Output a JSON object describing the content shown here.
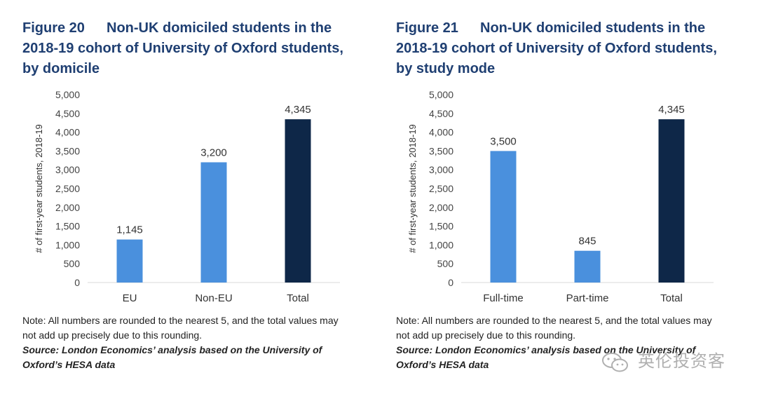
{
  "chart_data": [
    {
      "type": "bar",
      "figure_number": "Figure 20",
      "title": "Non-UK domiciled students in the 2018-19 cohort of University of Oxford students, by domicile",
      "ylabel": "# of first-year students, 2018-19",
      "xlabel": "",
      "ylim": [
        0,
        5000
      ],
      "yticks": [
        "0",
        "500",
        "1,000",
        "1,500",
        "2,000",
        "2,500",
        "3,000",
        "3,500",
        "4,000",
        "4,500",
        "5,000"
      ],
      "categories": [
        "EU",
        "Non-EU",
        "Total"
      ],
      "values": [
        1145,
        3200,
        4345
      ],
      "data_labels": [
        "1,145",
        "3,200",
        "4,345"
      ],
      "bar_colors": [
        "#4a90dd",
        "#4a90dd",
        "#0e2748"
      ],
      "note": "Note: All numbers are rounded to the nearest 5, and the total values may not add up precisely due to this rounding.",
      "source": "Source: London Economics’ analysis based on the University of Oxford’s HESA data"
    },
    {
      "type": "bar",
      "figure_number": "Figure 21",
      "title": "Non-UK domiciled students in the 2018-19 cohort of University of Oxford students, by study mode",
      "ylabel": "# of first-year students, 2018-19",
      "xlabel": "",
      "ylim": [
        0,
        5000
      ],
      "yticks": [
        "0",
        "500",
        "1,000",
        "1,500",
        "2,000",
        "2,500",
        "3,000",
        "3,500",
        "4,000",
        "4,500",
        "5,000"
      ],
      "categories": [
        "Full-time",
        "Part-time",
        "Total"
      ],
      "values": [
        3500,
        845,
        4345
      ],
      "data_labels": [
        "3,500",
        "845",
        "4,345"
      ],
      "bar_colors": [
        "#4a90dd",
        "#4a90dd",
        "#0e2748"
      ],
      "note": "Note: All numbers are rounded to the nearest 5, and the total values may not add up precisely due to this rounding.",
      "source": "Source: London Economics’ analysis based on the University of Oxford’s HESA data"
    }
  ],
  "watermark": {
    "text": "英伦投资客",
    "icon": "wechat-icon"
  },
  "colors": {
    "title": "#1f3f72",
    "bar_light": "#4a90dd",
    "bar_dark": "#0e2748",
    "axis": "#d9d9d9"
  }
}
